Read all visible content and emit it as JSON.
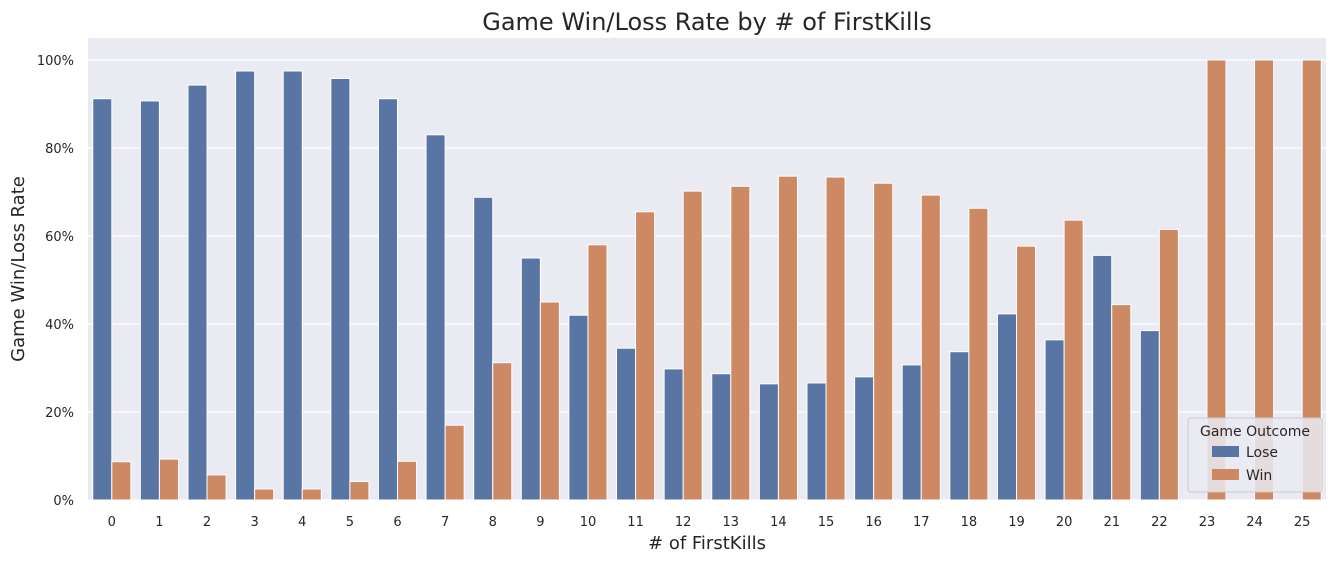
{
  "chart_data": {
    "type": "bar",
    "title": "Game Win/Loss Rate by # of FirstKills",
    "xlabel": "# of FirstKills",
    "ylabel": "Game Win/Loss Rate",
    "categories": [
      "0",
      "1",
      "2",
      "3",
      "4",
      "5",
      "6",
      "7",
      "8",
      "9",
      "10",
      "11",
      "12",
      "13",
      "14",
      "15",
      "16",
      "17",
      "18",
      "19",
      "20",
      "21",
      "22",
      "23",
      "24",
      "25"
    ],
    "y_ticks": [
      "0%",
      "20%",
      "40%",
      "60%",
      "80%",
      "100%"
    ],
    "ylim": [
      0,
      1.05
    ],
    "grid": true,
    "legend": {
      "title": "Game Outcome",
      "placement": "lower-right"
    },
    "series": [
      {
        "name": "Lose",
        "color": "#5875a4",
        "values": [
          0.912,
          0.907,
          0.943,
          0.975,
          0.975,
          0.958,
          0.912,
          0.83,
          0.688,
          0.55,
          0.42,
          0.345,
          0.298,
          0.287,
          0.264,
          0.266,
          0.28,
          0.307,
          0.337,
          0.423,
          0.364,
          0.556,
          0.385,
          null,
          null,
          null
        ]
      },
      {
        "name": "Win",
        "color": "#cc8963",
        "values": [
          0.087,
          0.093,
          0.057,
          0.025,
          0.025,
          0.042,
          0.088,
          0.17,
          0.312,
          0.45,
          0.58,
          0.655,
          0.702,
          0.713,
          0.736,
          0.734,
          0.72,
          0.693,
          0.663,
          0.577,
          0.636,
          0.444,
          0.615,
          1.0,
          1.0,
          1.0
        ]
      }
    ]
  }
}
